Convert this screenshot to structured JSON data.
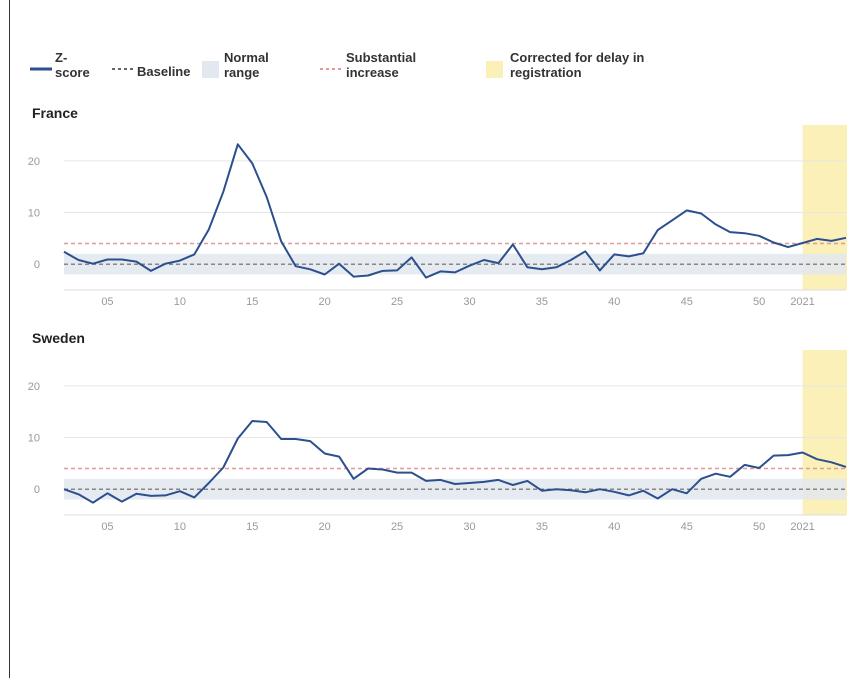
{
  "legend": {
    "zscore": "Z-\nscore",
    "baseline": "Baseline",
    "normal": "Normal\nrange",
    "substantial": "Substantial\nincrease",
    "corrected": "Corrected for delay in\nregistration"
  },
  "colors": {
    "line": "#2c4f8e",
    "baseline": "#666666",
    "threshold": "#e39a9a",
    "normal_band": "#e2e8ef",
    "corrected": "#fbf0b8",
    "grid": "#e6e6e6"
  },
  "chart_data": [
    {
      "type": "line",
      "title": "France",
      "x_ticks": [
        "05",
        "10",
        "15",
        "20",
        "25",
        "30",
        "35",
        "40",
        "45",
        "50",
        "2021"
      ],
      "y_ticks": [
        "0",
        "10",
        "20"
      ],
      "ylim": [
        -5,
        25
      ],
      "baseline": 0,
      "normal_range": [
        -2,
        2
      ],
      "substantial_increase": 4,
      "corrected_from_week": "2021",
      "series": [
        {
          "x": [
            2,
            3,
            4,
            5,
            6,
            7,
            8,
            9,
            10,
            11,
            12,
            13,
            14,
            15,
            16,
            17,
            18,
            19,
            20,
            21,
            22,
            23,
            24,
            25,
            26,
            27,
            28,
            29,
            30,
            31,
            32,
            33,
            34,
            35,
            36,
            37,
            38,
            39,
            40,
            41,
            42,
            43,
            44,
            45,
            46,
            47,
            48,
            49,
            50,
            51,
            52,
            53,
            54,
            55,
            56
          ],
          "y": [
            2.4,
            0.8,
            0.1,
            0.9,
            0.9,
            0.5,
            -1.3,
            0.1,
            0.7,
            1.9,
            6.7,
            14.0,
            23.2,
            19.5,
            13.0,
            4.4,
            -0.4,
            -1.0,
            -2.0,
            0.1,
            -2.4,
            -2.2,
            -1.3,
            -1.2,
            1.3,
            -2.6,
            -1.4,
            -1.6,
            -0.3,
            0.8,
            0.2,
            3.8,
            -0.6,
            -1.0,
            -0.6,
            0.8,
            2.5,
            -1.2,
            1.9,
            1.5,
            2.1,
            6.6,
            8.5,
            10.4,
            9.8,
            7.7,
            6.2,
            6.0,
            5.5,
            4.2,
            3.3,
            4.1,
            4.9,
            4.5,
            5.1
          ]
        }
      ]
    },
    {
      "type": "line",
      "title": "Sweden",
      "x_ticks": [
        "05",
        "10",
        "15",
        "20",
        "25",
        "30",
        "35",
        "40",
        "45",
        "50",
        "2021"
      ],
      "y_ticks": [
        "0",
        "10",
        "20"
      ],
      "ylim": [
        -5,
        25
      ],
      "baseline": 0,
      "normal_range": [
        -2,
        2
      ],
      "substantial_increase": 4,
      "corrected_from_week": "2021",
      "series": [
        {
          "x": [
            2,
            3,
            4,
            5,
            6,
            7,
            8,
            9,
            10,
            11,
            12,
            13,
            14,
            15,
            16,
            17,
            18,
            19,
            20,
            21,
            22,
            23,
            24,
            25,
            26,
            27,
            28,
            29,
            30,
            31,
            32,
            33,
            34,
            35,
            36,
            37,
            38,
            39,
            40,
            41,
            42,
            43,
            44,
            45,
            46,
            47,
            48,
            49,
            50,
            51,
            52,
            53,
            54,
            55,
            56
          ],
          "y": [
            0.0,
            -1.0,
            -2.6,
            -0.8,
            -2.4,
            -0.9,
            -1.3,
            -1.2,
            -0.4,
            -1.6,
            1.2,
            4.2,
            9.8,
            13.2,
            13.0,
            9.7,
            9.7,
            9.3,
            6.9,
            6.3,
            2.0,
            4.0,
            3.8,
            3.2,
            3.2,
            1.6,
            1.8,
            1.0,
            1.2,
            1.4,
            1.8,
            0.8,
            1.6,
            -0.3,
            0.0,
            -0.2,
            -0.6,
            0.0,
            -0.5,
            -1.2,
            -0.3,
            -1.8,
            0.0,
            -0.8,
            2.0,
            3.0,
            2.4,
            4.7,
            4.1,
            6.5,
            6.6,
            7.1,
            5.8,
            5.2,
            4.3
          ]
        }
      ]
    }
  ]
}
